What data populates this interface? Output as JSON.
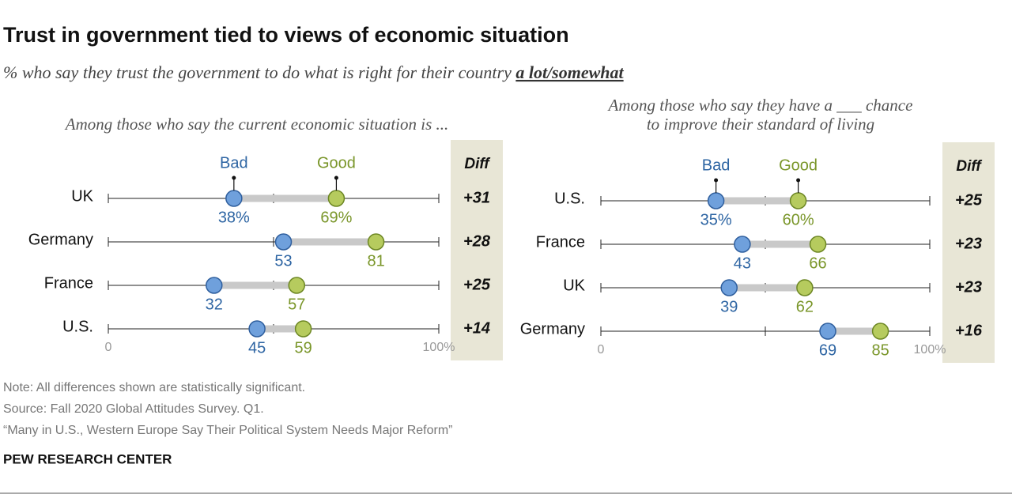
{
  "title": "Trust in government tied to views of economic situation",
  "subtitle": "% who say they trust the government to do what is right for their country",
  "subtitle_emphasis": "a lot/somewhat",
  "chart_data": [
    {
      "type": "dumbbell",
      "title": "Among those who say the current economic situation is ...",
      "categories": [
        "UK",
        "Germany",
        "France",
        "U.S."
      ],
      "series": [
        {
          "name": "Bad",
          "color": "#6fa0dc",
          "values": [
            38,
            53,
            32,
            45
          ],
          "value_labels": [
            "38%",
            "53",
            "32",
            "45"
          ]
        },
        {
          "name": "Good",
          "color": "#b6cb5e",
          "values": [
            69,
            81,
            57,
            59
          ],
          "value_labels": [
            "69%",
            "81",
            "57",
            "59"
          ]
        }
      ],
      "diff": {
        "name": "Diff",
        "values": [
          31,
          28,
          25,
          14
        ],
        "value_labels": [
          "+31",
          "+28",
          "+25",
          "+14"
        ]
      },
      "xlim": [
        0,
        100
      ],
      "xticks": [
        0,
        {
          "value": 50,
          "label": null
        },
        {
          "value": 100,
          "label": "100%"
        }
      ]
    },
    {
      "type": "dumbbell",
      "title": [
        "Among those who say they have a ___ chance",
        "to improve their standard of living"
      ],
      "categories": [
        "U.S.",
        "France",
        "UK",
        "Germany"
      ],
      "series": [
        {
          "name": "Bad",
          "color": "#6fa0dc",
          "values": [
            35,
            43,
            39,
            69
          ],
          "value_labels": [
            "35%",
            "43",
            "39",
            "69"
          ]
        },
        {
          "name": "Good",
          "color": "#b6cb5e",
          "values": [
            60,
            66,
            62,
            85
          ],
          "value_labels": [
            "60%",
            "66",
            "62",
            "85"
          ]
        }
      ],
      "diff": {
        "name": "Diff",
        "values": [
          25,
          23,
          23,
          16
        ],
        "value_labels": [
          "+25",
          "+23",
          "+23",
          "+16"
        ]
      },
      "xlim": [
        0,
        100
      ],
      "xticks": [
        0,
        {
          "value": 50,
          "label": null
        },
        {
          "value": 100,
          "label": "100%"
        }
      ]
    }
  ],
  "notes": [
    "Note: All differences shown are statistically significant.",
    "Source: Fall 2020 Global Attitudes Survey. Q1.",
    "“Many in U.S., Western Europe Say Their Political System Needs Major Reform”"
  ],
  "branding": "PEW RESEARCH CENTER"
}
